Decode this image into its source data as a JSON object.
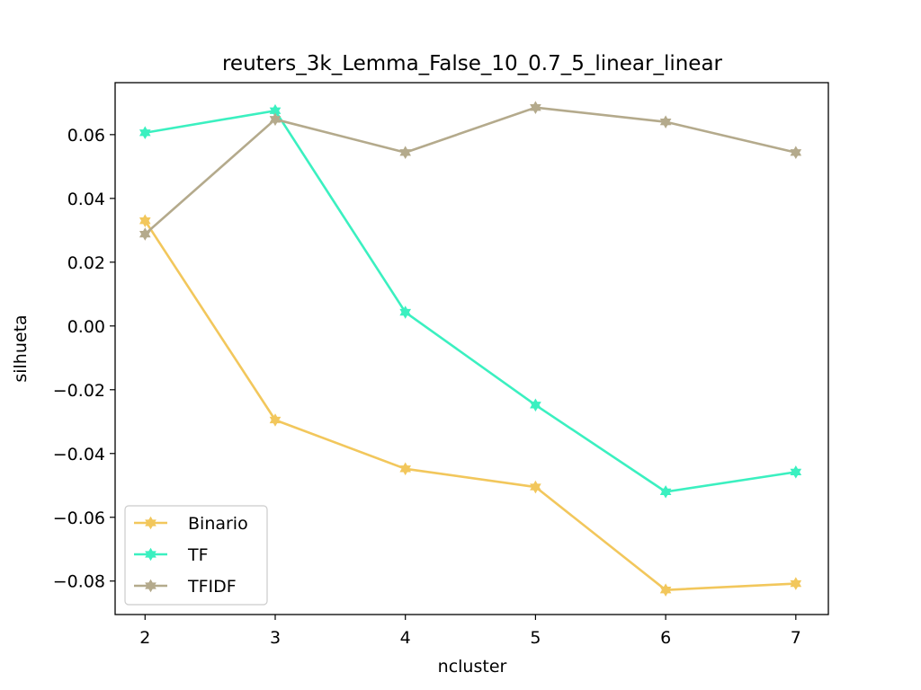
{
  "chart_data": {
    "type": "line",
    "title": "reuters_3k_Lemma_False_10_0.7_5_linear_linear",
    "xlabel": "ncluster",
    "ylabel": "silhueta",
    "x": [
      2,
      3,
      4,
      5,
      6,
      7
    ],
    "xlim": [
      1.77,
      7.25
    ],
    "ylim": [
      -0.0905,
      0.0763
    ],
    "xticks": [
      2,
      3,
      4,
      5,
      6,
      7
    ],
    "xtick_labels": [
      "2",
      "3",
      "4",
      "5",
      "6",
      "7"
    ],
    "yticks": [
      0.06,
      0.04,
      0.02,
      0.0,
      -0.02,
      -0.04,
      -0.06,
      -0.08
    ],
    "ytick_labels": [
      "0.06",
      "0.04",
      "0.02",
      "0.00",
      "−0.02",
      "−0.04",
      "−0.06",
      "−0.08"
    ],
    "legend_position": "lower-left",
    "grid": false,
    "marker": "star",
    "series": [
      {
        "name": "Binario",
        "color": "#f2c75c",
        "values": [
          0.033,
          -0.0295,
          -0.0448,
          -0.0505,
          -0.0828,
          -0.0808
        ]
      },
      {
        "name": "TF",
        "color": "#3bf0c0",
        "values": [
          0.0606,
          0.0675,
          0.0043,
          -0.0248,
          -0.052,
          -0.0458
        ]
      },
      {
        "name": "TFIDF",
        "color": "#b4aa8c",
        "values": [
          0.0288,
          0.0648,
          0.0544,
          0.0685,
          0.064,
          0.0544
        ]
      }
    ]
  }
}
